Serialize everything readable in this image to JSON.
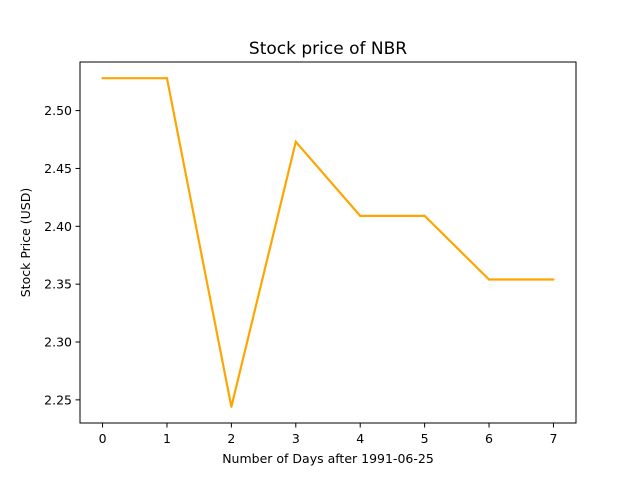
{
  "chart_data": {
    "type": "line",
    "title": "Stock price of NBR",
    "xlabel": "Number of Days after 1991-06-25",
    "ylabel": "Stock Price (USD)",
    "x": [
      0,
      1,
      2,
      3,
      4,
      5,
      6,
      7
    ],
    "xticks": [
      "0",
      "1",
      "2",
      "3",
      "4",
      "5",
      "6",
      "7"
    ],
    "yticks": [
      "2.25",
      "2.30",
      "2.35",
      "2.40",
      "2.45",
      "2.50"
    ],
    "ytick_values": [
      2.25,
      2.3,
      2.35,
      2.4,
      2.45,
      2.5
    ],
    "xlim": [
      -0.35,
      7.35
    ],
    "ylim": [
      2.23,
      2.542
    ],
    "grid": false,
    "series": [
      {
        "color": "#FFA500",
        "values": [
          2.528,
          2.528,
          2.244,
          2.473,
          2.409,
          2.409,
          2.354,
          2.354
        ]
      }
    ]
  }
}
